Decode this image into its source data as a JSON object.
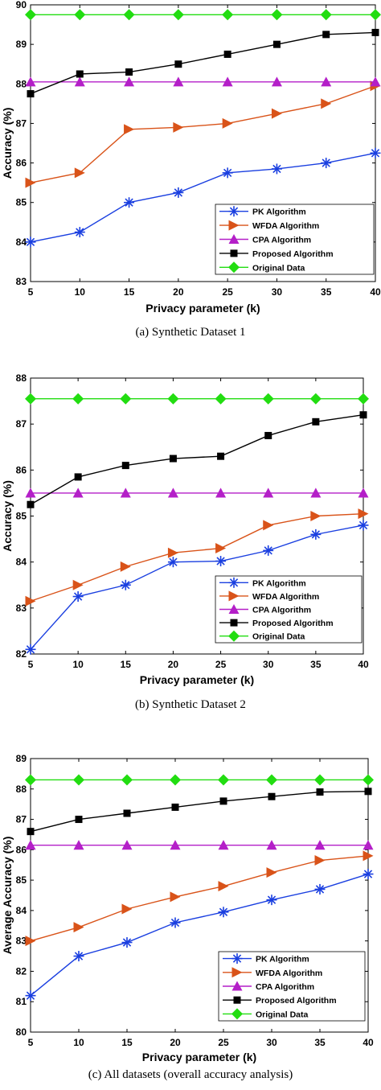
{
  "series_styles": [
    {
      "name": "PK Algorithm",
      "color": "#1a3fe0",
      "marker": "asterisk"
    },
    {
      "name": "WFDA Algorithm",
      "color": "#d95319",
      "marker": "triangle-right"
    },
    {
      "name": "CPA Algorithm",
      "color": "#b41fc8",
      "marker": "triangle-up"
    },
    {
      "name": "Proposed Algorithm",
      "color": "#000000",
      "marker": "square"
    },
    {
      "name": "Original Data",
      "color": "#22dd11",
      "marker": "diamond"
    }
  ],
  "chart_data": [
    {
      "type": "line",
      "caption": "(a)  Synthetic Dataset 1",
      "xlabel": "Privacy parameter (k)",
      "ylabel": "Accuracy (%)",
      "x": [
        5,
        10,
        15,
        20,
        25,
        30,
        35,
        40
      ],
      "xticks": [
        5,
        10,
        15,
        20,
        25,
        30,
        35,
        40
      ],
      "yticks": [
        83,
        84,
        85,
        86,
        87,
        88,
        89,
        90
      ],
      "xlim": [
        5,
        40
      ],
      "ylim": [
        83,
        90
      ],
      "legend_position": "bottom-right",
      "series": [
        {
          "name": "PK Algorithm",
          "values": [
            84.0,
            84.25,
            85.0,
            85.25,
            85.75,
            85.85,
            86.0,
            86.25
          ]
        },
        {
          "name": "WFDA Algorithm",
          "values": [
            85.5,
            85.75,
            86.85,
            86.9,
            87.0,
            87.25,
            87.5,
            87.95
          ]
        },
        {
          "name": "CPA Algorithm",
          "values": [
            88.05,
            88.05,
            88.05,
            88.05,
            88.05,
            88.05,
            88.05,
            88.05
          ]
        },
        {
          "name": "Proposed Algorithm",
          "values": [
            87.75,
            88.25,
            88.3,
            88.5,
            88.75,
            89.0,
            89.25,
            89.3
          ]
        },
        {
          "name": "Original Data",
          "values": [
            89.75,
            89.75,
            89.75,
            89.75,
            89.75,
            89.75,
            89.75,
            89.75
          ]
        }
      ]
    },
    {
      "type": "line",
      "caption": "(b)  Synthetic Dataset 2",
      "xlabel": "Privacy parameter (k)",
      "ylabel": "Accuracy (%)",
      "x": [
        5,
        10,
        15,
        20,
        25,
        30,
        35,
        40
      ],
      "xticks": [
        5,
        10,
        15,
        20,
        25,
        30,
        35,
        40
      ],
      "yticks": [
        82,
        83,
        84,
        85,
        86,
        87,
        88
      ],
      "xlim": [
        5,
        40
      ],
      "ylim": [
        82,
        88
      ],
      "legend_position": "bottom-right",
      "series": [
        {
          "name": "PK Algorithm",
          "values": [
            82.1,
            83.25,
            83.5,
            84.0,
            84.02,
            84.25,
            84.6,
            84.8
          ]
        },
        {
          "name": "WFDA Algorithm",
          "values": [
            83.15,
            83.5,
            83.9,
            84.2,
            84.3,
            84.8,
            85.0,
            85.05
          ]
        },
        {
          "name": "CPA Algorithm",
          "values": [
            85.5,
            85.5,
            85.5,
            85.5,
            85.5,
            85.5,
            85.5,
            85.5
          ]
        },
        {
          "name": "Proposed Algorithm",
          "values": [
            85.25,
            85.85,
            86.1,
            86.25,
            86.3,
            86.75,
            87.05,
            87.2
          ]
        },
        {
          "name": "Original Data",
          "values": [
            87.55,
            87.55,
            87.55,
            87.55,
            87.55,
            87.55,
            87.55,
            87.55
          ]
        }
      ]
    },
    {
      "type": "line",
      "caption": "(c)  All datasets (overall accuracy analysis)",
      "xlabel": "Privacy parameter (k)",
      "ylabel": "Average Accuracy (%)",
      "x": [
        5,
        10,
        15,
        20,
        25,
        30,
        35,
        40
      ],
      "xticks": [
        5,
        10,
        15,
        20,
        25,
        30,
        35,
        40
      ],
      "yticks": [
        80,
        81,
        82,
        83,
        84,
        85,
        86,
        87,
        88,
        89
      ],
      "xlim": [
        5,
        40
      ],
      "ylim": [
        80,
        89
      ],
      "legend_position": "bottom-right",
      "series": [
        {
          "name": "PK Algorithm",
          "values": [
            81.2,
            82.5,
            82.95,
            83.6,
            83.95,
            84.35,
            84.7,
            85.2
          ]
        },
        {
          "name": "WFDA Algorithm",
          "values": [
            83.0,
            83.45,
            84.05,
            84.45,
            84.8,
            85.25,
            85.65,
            85.8
          ]
        },
        {
          "name": "CPA Algorithm",
          "values": [
            86.15,
            86.15,
            86.15,
            86.15,
            86.15,
            86.15,
            86.15,
            86.15
          ]
        },
        {
          "name": "Proposed Algorithm",
          "values": [
            86.6,
            87.0,
            87.2,
            87.4,
            87.6,
            87.75,
            87.9,
            87.92
          ]
        },
        {
          "name": "Original Data",
          "values": [
            88.3,
            88.3,
            88.3,
            88.3,
            88.3,
            88.3,
            88.3,
            88.3
          ]
        }
      ]
    }
  ]
}
